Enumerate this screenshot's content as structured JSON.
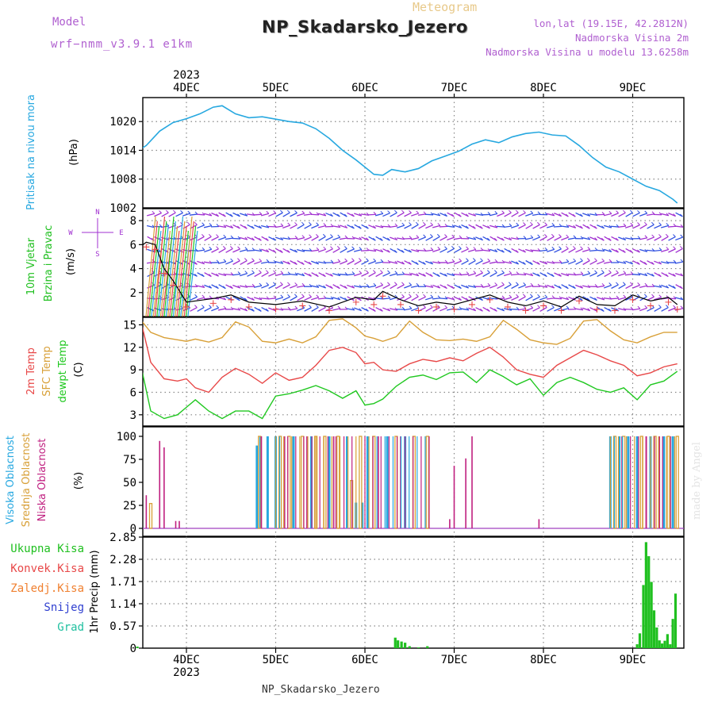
{
  "header": {
    "meteogram_label": "Meteogram",
    "station": "NP_Skadarsko_Jezero",
    "model_label": "Model",
    "model_value": "wrf−nmm_v3.9.1  e1km",
    "lonlat": "lon,lat (19.15E, 42.2812N)",
    "elevation": "Nadmorska Visina 2m",
    "model_elevation": "Nadmorska Visina u modelu 13.6258m"
  },
  "footer": {
    "station": "NP_Skadarsko_Jezero",
    "watermark": "made by Angel"
  },
  "time_axis": {
    "year": "2023",
    "days": [
      "4DEC",
      "5DEC",
      "6DEC",
      "7DEC",
      "8DEC",
      "9DEC"
    ],
    "range_days": [
      -0.58,
      5.5
    ]
  },
  "colors": {
    "pressure": "#27a8e0",
    "temp2m": "#e84848",
    "sfc": "#d8a038",
    "dewpt": "#20c820",
    "high_cloud": "#27a8e0",
    "mid_cloud": "#d8a038",
    "low_cloud": "#c02080",
    "total_precip": "#20c020",
    "wind_purple": "#a030d0",
    "wind_blue": "#3050e0"
  },
  "chart_data": [
    {
      "id": "pressure",
      "type": "line",
      "ylabel_name": "Pritisak na nivou mora",
      "ylabel_unit": "(hPa)",
      "ylim": [
        1002,
        1025
      ],
      "yticks": [
        1008,
        1014,
        1020
      ],
      "ytick_labels": [
        "1008",
        "1014",
        "1020"
      ],
      "edge_label": "1002",
      "x": [
        -0.58,
        -0.45,
        -0.3,
        -0.15,
        0.0,
        0.15,
        0.3,
        0.4,
        0.55,
        0.7,
        0.85,
        1.0,
        1.15,
        1.3,
        1.45,
        1.6,
        1.75,
        1.9,
        2.0,
        2.1,
        2.2,
        2.3,
        2.45,
        2.6,
        2.75,
        2.9,
        3.05,
        3.2,
        3.35,
        3.5,
        3.65,
        3.8,
        3.95,
        4.1,
        4.25,
        4.4,
        4.55,
        4.7,
        4.85,
        5.0,
        5.15,
        5.3,
        5.45,
        5.5
      ],
      "series": [
        {
          "values": [
            1013.5,
            1015.0,
            1018.0,
            1019.8,
            1020.6,
            1021.6,
            1023.0,
            1023.3,
            1021.6,
            1020.8,
            1021.0,
            1020.5,
            1020.0,
            1019.7,
            1018.5,
            1016.5,
            1014.0,
            1012.0,
            1010.5,
            1009.0,
            1008.8,
            1010.0,
            1009.5,
            1010.2,
            1011.8,
            1012.8,
            1013.8,
            1015.3,
            1016.2,
            1015.6,
            1016.8,
            1017.5,
            1017.8,
            1017.2,
            1017.0,
            1015.0,
            1012.5,
            1010.5,
            1009.5,
            1008.0,
            1006.5,
            1005.6,
            1003.8,
            1003.0
          ]
        }
      ]
    },
    {
      "id": "wind",
      "type": "line",
      "ylabel_name": "10m Vjetar",
      "ylabel_name2": "Brzina i Pravac",
      "ylabel_unit": "(m/s)",
      "compass": [
        "N",
        "E",
        "S",
        "W"
      ],
      "ylim": [
        0,
        9
      ],
      "yticks": [
        2,
        4,
        6,
        8
      ],
      "ytick_labels": [
        "2",
        "4",
        "6",
        "8"
      ],
      "x": [
        -0.58,
        -0.45,
        -0.35,
        -0.25,
        -0.15,
        0.0,
        0.3,
        0.5,
        0.7,
        1.0,
        1.3,
        1.6,
        1.9,
        2.1,
        2.2,
        2.4,
        2.6,
        2.8,
        3.0,
        3.2,
        3.4,
        3.6,
        3.8,
        4.0,
        4.2,
        4.4,
        4.6,
        4.8,
        5.0,
        5.2,
        5.4,
        5.5
      ],
      "series": [
        {
          "values": [
            5.5,
            6.2,
            6.0,
            4.0,
            3.0,
            1.2,
            1.5,
            1.8,
            1.2,
            1.0,
            1.3,
            0.8,
            1.6,
            1.4,
            2.1,
            1.4,
            0.9,
            1.2,
            1.0,
            1.4,
            1.8,
            1.2,
            0.9,
            1.3,
            0.8,
            1.7,
            1.0,
            0.9,
            1.8,
            1.3,
            1.6,
            1.0
          ]
        }
      ]
    },
    {
      "id": "temperature",
      "type": "line",
      "ylabel_names": [
        "2m Temp",
        "SFC Temp",
        "dewpt Temp"
      ],
      "ylabel_unit": "(C)",
      "ylim": [
        1.5,
        16
      ],
      "yticks": [
        3,
        6,
        9,
        12,
        15
      ],
      "ytick_labels": [
        "3",
        "6",
        "9",
        "12",
        "15"
      ],
      "x": [
        -0.58,
        -0.5,
        -0.4,
        -0.25,
        -0.1,
        0.0,
        0.1,
        0.25,
        0.4,
        0.55,
        0.7,
        0.85,
        1.0,
        1.15,
        1.3,
        1.45,
        1.6,
        1.75,
        1.9,
        2.0,
        2.1,
        2.2,
        2.35,
        2.5,
        2.65,
        2.8,
        2.95,
        3.1,
        3.25,
        3.4,
        3.55,
        3.7,
        3.85,
        4.0,
        4.15,
        4.3,
        4.45,
        4.6,
        4.75,
        4.9,
        5.05,
        5.2,
        5.35,
        5.5
      ],
      "series": [
        {
          "name": "2m Temp",
          "values": [
            13.0,
            15.0,
            10.0,
            7.8,
            7.5,
            7.8,
            6.6,
            6.0,
            8.0,
            9.2,
            8.4,
            7.2,
            8.6,
            7.6,
            8.0,
            9.6,
            11.6,
            12.0,
            11.3,
            9.8,
            10.0,
            9.0,
            8.8,
            9.8,
            10.4,
            10.1,
            10.6,
            10.2,
            11.2,
            12.0,
            10.7,
            9.0,
            8.4,
            8.0,
            9.6,
            10.6,
            11.6,
            11.0,
            10.2,
            9.6,
            8.2,
            8.6,
            9.4,
            9.8
          ]
        },
        {
          "name": "SFC Temp",
          "values": [
            15.0,
            15.5,
            14.0,
            13.3,
            13.0,
            12.8,
            13.1,
            12.7,
            13.3,
            15.4,
            14.7,
            12.8,
            12.6,
            13.1,
            12.6,
            13.4,
            15.6,
            15.8,
            14.6,
            13.5,
            13.2,
            12.8,
            13.4,
            15.5,
            14.0,
            13.0,
            12.9,
            13.1,
            12.8,
            13.4,
            15.6,
            14.4,
            13.0,
            12.6,
            12.4,
            13.2,
            15.5,
            15.7,
            14.2,
            13.0,
            12.6,
            13.4,
            14.0,
            14.0
          ]
        },
        {
          "name": "dewpt Temp",
          "values": [
            9.0,
            9.0,
            3.5,
            2.5,
            3.0,
            4.0,
            5.0,
            3.5,
            2.5,
            3.5,
            3.5,
            2.5,
            5.5,
            5.8,
            6.3,
            6.9,
            6.2,
            5.2,
            6.2,
            4.3,
            4.5,
            5.1,
            6.8,
            8.0,
            8.3,
            7.7,
            8.6,
            8.7,
            7.3,
            9.0,
            8.1,
            7.0,
            7.8,
            5.6,
            7.3,
            8.0,
            7.3,
            6.4,
            6.0,
            6.6,
            5.0,
            7.0,
            7.5,
            8.8
          ]
        }
      ]
    },
    {
      "id": "clouds",
      "type": "bar",
      "ylabel_names": [
        "Visoka Oblacnost",
        "Srednja Oblacnost",
        "Niska Oblacnost"
      ],
      "ylabel_unit": "(%)",
      "ylim": [
        0,
        100
      ],
      "yticks": [
        0,
        25,
        50,
        75,
        100
      ],
      "ytick_labels": [
        "0",
        "25",
        "50",
        "75",
        "100"
      ],
      "series": [
        {
          "name": "Visoka Oblacnost",
          "x": [
            0.79,
            0.83,
            0.91,
            1.0,
            1.2,
            1.4,
            1.6,
            1.8,
            1.9,
            1.97,
            2.03,
            2.25,
            2.45,
            4.75,
            4.85,
            4.95,
            5.05,
            5.2,
            5.35,
            5.45
          ],
          "values": [
            90,
            100,
            100,
            100,
            100,
            100,
            100,
            100,
            28,
            28,
            100,
            100,
            100,
            100,
            100,
            100,
            100,
            100,
            100,
            100
          ]
        },
        {
          "name": "Srednja Oblacnost",
          "x": [
            -0.4,
            0.82,
            1.05,
            1.15,
            1.3,
            1.45,
            1.55,
            1.7,
            1.85,
            1.95,
            2.1,
            2.35,
            2.55,
            2.7,
            4.8,
            4.9,
            5.1,
            5.25,
            5.4,
            5.5
          ],
          "values": [
            27,
            100,
            100,
            100,
            100,
            100,
            100,
            100,
            52,
            100,
            100,
            100,
            100,
            100,
            100,
            100,
            100,
            100,
            100,
            100
          ]
        },
        {
          "name": "Niska Oblacnost",
          "x": [
            -0.45,
            -0.3,
            -0.25,
            -0.12,
            -0.08,
            0.84,
            1.1,
            1.35,
            1.65,
            2.15,
            2.4,
            2.95,
            3.0,
            3.13,
            3.2,
            3.95,
            4.88,
            5.15,
            5.3
          ],
          "values": [
            36,
            95,
            88,
            8,
            8,
            100,
            100,
            100,
            100,
            100,
            100,
            10,
            68,
            76,
            100,
            10,
            100,
            100,
            100
          ]
        }
      ]
    },
    {
      "id": "precip",
      "type": "bar",
      "ylabel_names": [
        "Ukupna Kisa",
        "Konvek.Kisa",
        "Zaledj.Kisa",
        "Snijeg",
        "Grad"
      ],
      "ylabel_unit": "1hr Precip (mm)",
      "ylim": [
        0,
        2.85
      ],
      "yticks": [
        0,
        0.57,
        1.14,
        1.71,
        2.28,
        2.85
      ],
      "ytick_labels": [
        "0",
        "0.57",
        "1.14",
        "1.71",
        "2.28",
        "2.85"
      ],
      "series": [
        {
          "name": "Ukupna Kisa",
          "x": [
            -0.55,
            2.34,
            2.37,
            2.41,
            2.45,
            2.5,
            2.6,
            2.7,
            5.05,
            5.08,
            5.12,
            5.15,
            5.18,
            5.21,
            5.24,
            5.27,
            5.3,
            5.33,
            5.36,
            5.39,
            5.42,
            5.45,
            5.48
          ],
          "values": [
            0.04,
            0.27,
            0.2,
            0.17,
            0.14,
            0.05,
            0.02,
            0.05,
            0.1,
            0.38,
            1.62,
            2.72,
            2.36,
            1.7,
            0.97,
            0.53,
            0.2,
            0.12,
            0.19,
            0.36,
            0.1,
            0.75,
            1.4
          ]
        }
      ]
    }
  ]
}
